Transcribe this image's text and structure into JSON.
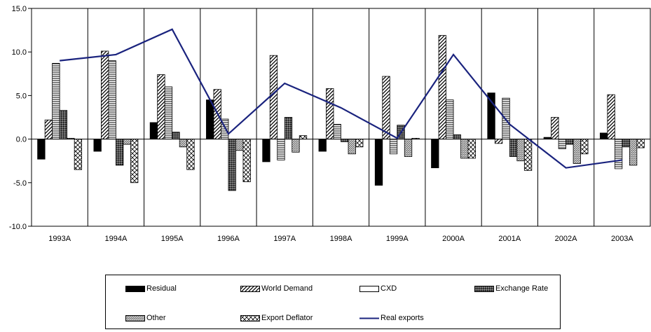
{
  "chart_data": {
    "type": "bar",
    "categories": [
      "1993A",
      "1994A",
      "1995A",
      "1996A",
      "1997A",
      "1998A",
      "1999A",
      "2000A",
      "2001A",
      "2002A",
      "2003A"
    ],
    "ylim": [
      -10,
      15
    ],
    "yticks": [
      "15.0",
      "10.0",
      "5.0",
      "0.0",
      "-5.0",
      "-10.0"
    ],
    "ytick_values": [
      15,
      10,
      5,
      0,
      -5,
      -10
    ],
    "grid": "vertical",
    "legend_position": "bottom",
    "series": [
      {
        "name": "Residual",
        "pattern": "solid",
        "values": [
          -2.3,
          -1.4,
          1.9,
          4.5,
          -2.6,
          -1.4,
          -5.3,
          -3.3,
          5.3,
          0.2,
          0.7
        ]
      },
      {
        "name": "World Demand",
        "pattern": "diagonal",
        "values": [
          2.2,
          10.1,
          7.4,
          5.7,
          9.6,
          5.8,
          7.2,
          11.9,
          -0.5,
          2.5,
          5.1
        ]
      },
      {
        "name": "CXD",
        "pattern": "horizontal",
        "values": [
          8.7,
          9.0,
          6.0,
          2.3,
          -2.4,
          1.7,
          -1.7,
          4.5,
          4.7,
          -1.1,
          -3.4
        ]
      },
      {
        "name": "Exchange Rate",
        "pattern": "crosshatch",
        "values": [
          3.3,
          -3.0,
          0.8,
          -5.9,
          2.5,
          -0.3,
          1.6,
          0.5,
          -2.0,
          -0.6,
          -0.9
        ]
      },
      {
        "name": "Other",
        "pattern": "dense",
        "values": [
          0.1,
          -0.6,
          -0.9,
          -1.3,
          -1.5,
          -1.7,
          -2.0,
          -2.2,
          -2.5,
          -2.8,
          -3.0
        ]
      },
      {
        "name": "Export Deflator",
        "pattern": "checker",
        "values": [
          -3.5,
          -5.0,
          -3.5,
          -4.9,
          0.4,
          -0.9,
          0.1,
          -2.2,
          -3.6,
          -1.7,
          -1.0
        ]
      }
    ],
    "line": {
      "name": "Real exports",
      "color": "#1a237e",
      "values": [
        9.0,
        9.7,
        12.6,
        0.6,
        6.4,
        3.6,
        0.1,
        9.7,
        1.7,
        -3.3,
        -2.4
      ]
    }
  },
  "legend": {
    "items": [
      "Residual",
      "World Demand",
      "CXD",
      "Exchange Rate",
      "Other",
      "Export Deflator",
      "Real exports"
    ]
  }
}
